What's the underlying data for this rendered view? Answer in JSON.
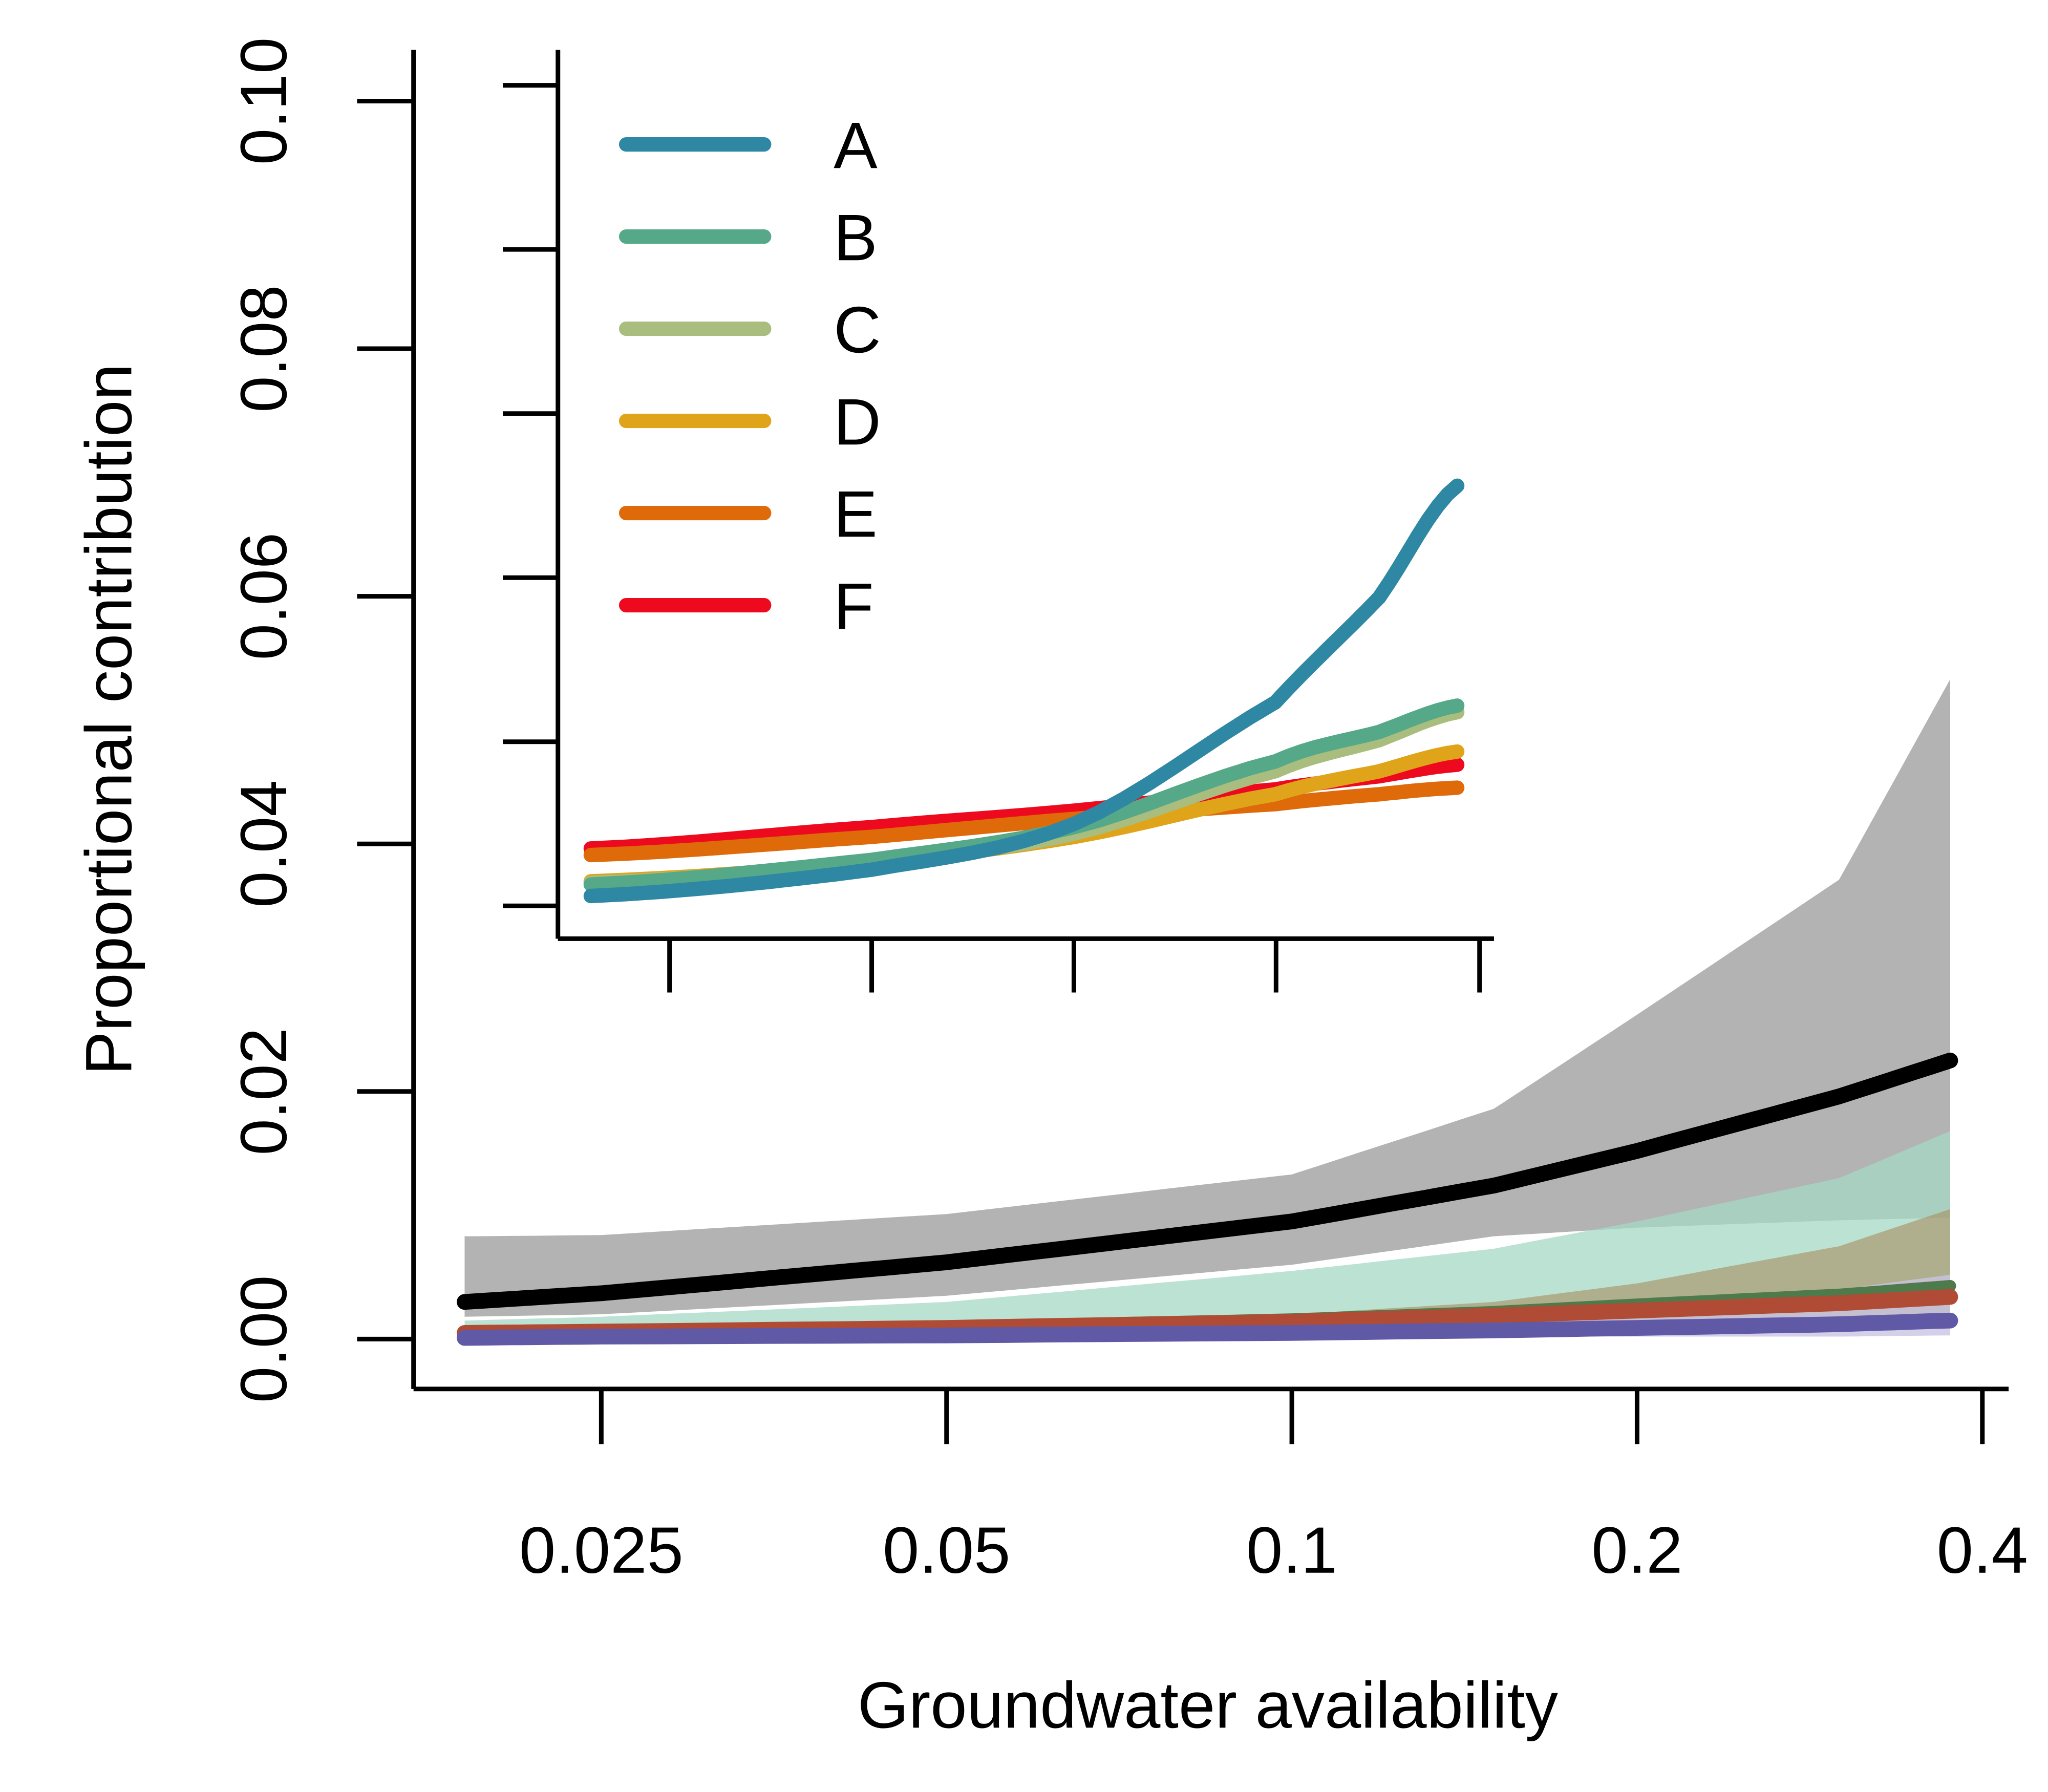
{
  "chart_data": [
    {
      "type": "area",
      "title": "",
      "xlabel": "Groundwater availability",
      "ylabel": "Proportional contribution",
      "x_scale": "log",
      "xlim": [
        0.019,
        0.375
      ],
      "ylim": [
        0,
        0.1
      ],
      "x_ticks": [
        0.025,
        0.05,
        0.1,
        0.2,
        0.4
      ],
      "x_tick_labels": [
        "0.025",
        "0.05",
        "0.1",
        "0.2",
        "0.4"
      ],
      "y_ticks": [
        0,
        0.02,
        0.04,
        0.06,
        0.08,
        0.1
      ],
      "y_tick_labels": [
        "0.00",
        "0.02",
        "0.04",
        "0.06",
        "0.08",
        "0.10"
      ],
      "x": [
        0.019,
        0.025,
        0.05,
        0.1,
        0.15,
        0.2,
        0.3,
        0.375
      ],
      "bands": [
        {
          "name": "total-ci",
          "color": "#b3b3b3",
          "opacity": 1,
          "lower": [
            0.0018,
            0.002,
            0.0035,
            0.006,
            0.0083,
            0.009,
            0.0096,
            0.0098
          ],
          "upper": [
            0.0083,
            0.0084,
            0.0101,
            0.0133,
            0.0186,
            0.0262,
            0.0371,
            0.0533
          ]
        },
        {
          "name": "band-teal",
          "color": "#a6d8c6",
          "opacity": 0.75,
          "lower": [
            0.0004,
            0.0004,
            0.0005,
            0.0006,
            0.0007,
            0.0008,
            0.0009,
            0.001
          ],
          "upper": [
            0.0015,
            0.0018,
            0.003,
            0.0055,
            0.0073,
            0.0095,
            0.013,
            0.0168
          ]
        },
        {
          "name": "band-tan",
          "color": "#a88d5e",
          "opacity": 0.6,
          "lower": [
            0.0003,
            0.0003,
            0.0004,
            0.0005,
            0.0006,
            0.0007,
            0.0008,
            0.0009
          ],
          "upper": [
            0.0007,
            0.0008,
            0.0012,
            0.002,
            0.003,
            0.0045,
            0.0075,
            0.0105
          ]
        },
        {
          "name": "band-purple",
          "color": "#c9c4e3",
          "opacity": 0.8,
          "lower": [
            0.0,
            0.0,
            0.0001,
            0.0001,
            0.0002,
            0.0002,
            0.0002,
            0.0003
          ],
          "upper": [
            0.0005,
            0.0006,
            0.0009,
            0.0014,
            0.002,
            0.0027,
            0.004,
            0.0052
          ]
        }
      ],
      "series": [
        {
          "name": "green",
          "color": "#4f7a4b",
          "width": 9,
          "values": [
            0.0006,
            0.0007,
            0.001,
            0.0016,
            0.0022,
            0.0028,
            0.0036,
            0.0043
          ]
        },
        {
          "name": "orange-red",
          "color": "#b04c35",
          "width": 12,
          "values": [
            0.0005,
            0.0006,
            0.0009,
            0.0014,
            0.0019,
            0.0023,
            0.0029,
            0.0034
          ]
        },
        {
          "name": "purple",
          "color": "#6059a6",
          "width": 12,
          "values": [
            0.0001,
            0.0002,
            0.0003,
            0.0005,
            0.0007,
            0.0009,
            0.0012,
            0.0015
          ]
        },
        {
          "name": "total",
          "color": "#000000",
          "width": 12,
          "values": [
            0.003,
            0.0037,
            0.0062,
            0.0095,
            0.0124,
            0.0152,
            0.0196,
            0.0225
          ]
        }
      ]
    },
    {
      "type": "line",
      "title": "inset",
      "xlabel": "",
      "ylabel": "",
      "x_unit": "fraction of inset range",
      "y_unit": "tick intervals",
      "ylim": [
        0,
        5
      ],
      "x": [
        0,
        0.324,
        0.558,
        0.79,
        0.91,
        1
      ],
      "legend_position": "top-left",
      "series": [
        {
          "name": "A",
          "color": "#2e87a3",
          "values": [
            0.06,
            0.22,
            0.5,
            1.24,
            1.88,
            2.56
          ]
        },
        {
          "name": "B",
          "color": "#55a888",
          "values": [
            0.13,
            0.28,
            0.48,
            0.88,
            1.06,
            1.22
          ]
        },
        {
          "name": "C",
          "color": "#a8bd7e",
          "values": [
            0.14,
            0.26,
            0.44,
            0.82,
            1.01,
            1.18
          ]
        },
        {
          "name": "D",
          "color": "#e0a41a",
          "values": [
            0.15,
            0.26,
            0.42,
            0.68,
            0.82,
            0.94
          ]
        },
        {
          "name": "E",
          "color": "#de6a0a",
          "values": [
            0.31,
            0.42,
            0.53,
            0.62,
            0.68,
            0.72
          ]
        },
        {
          "name": "F",
          "color": "#ee0a1e",
          "values": [
            0.35,
            0.48,
            0.58,
            0.71,
            0.79,
            0.86
          ]
        }
      ]
    }
  ]
}
